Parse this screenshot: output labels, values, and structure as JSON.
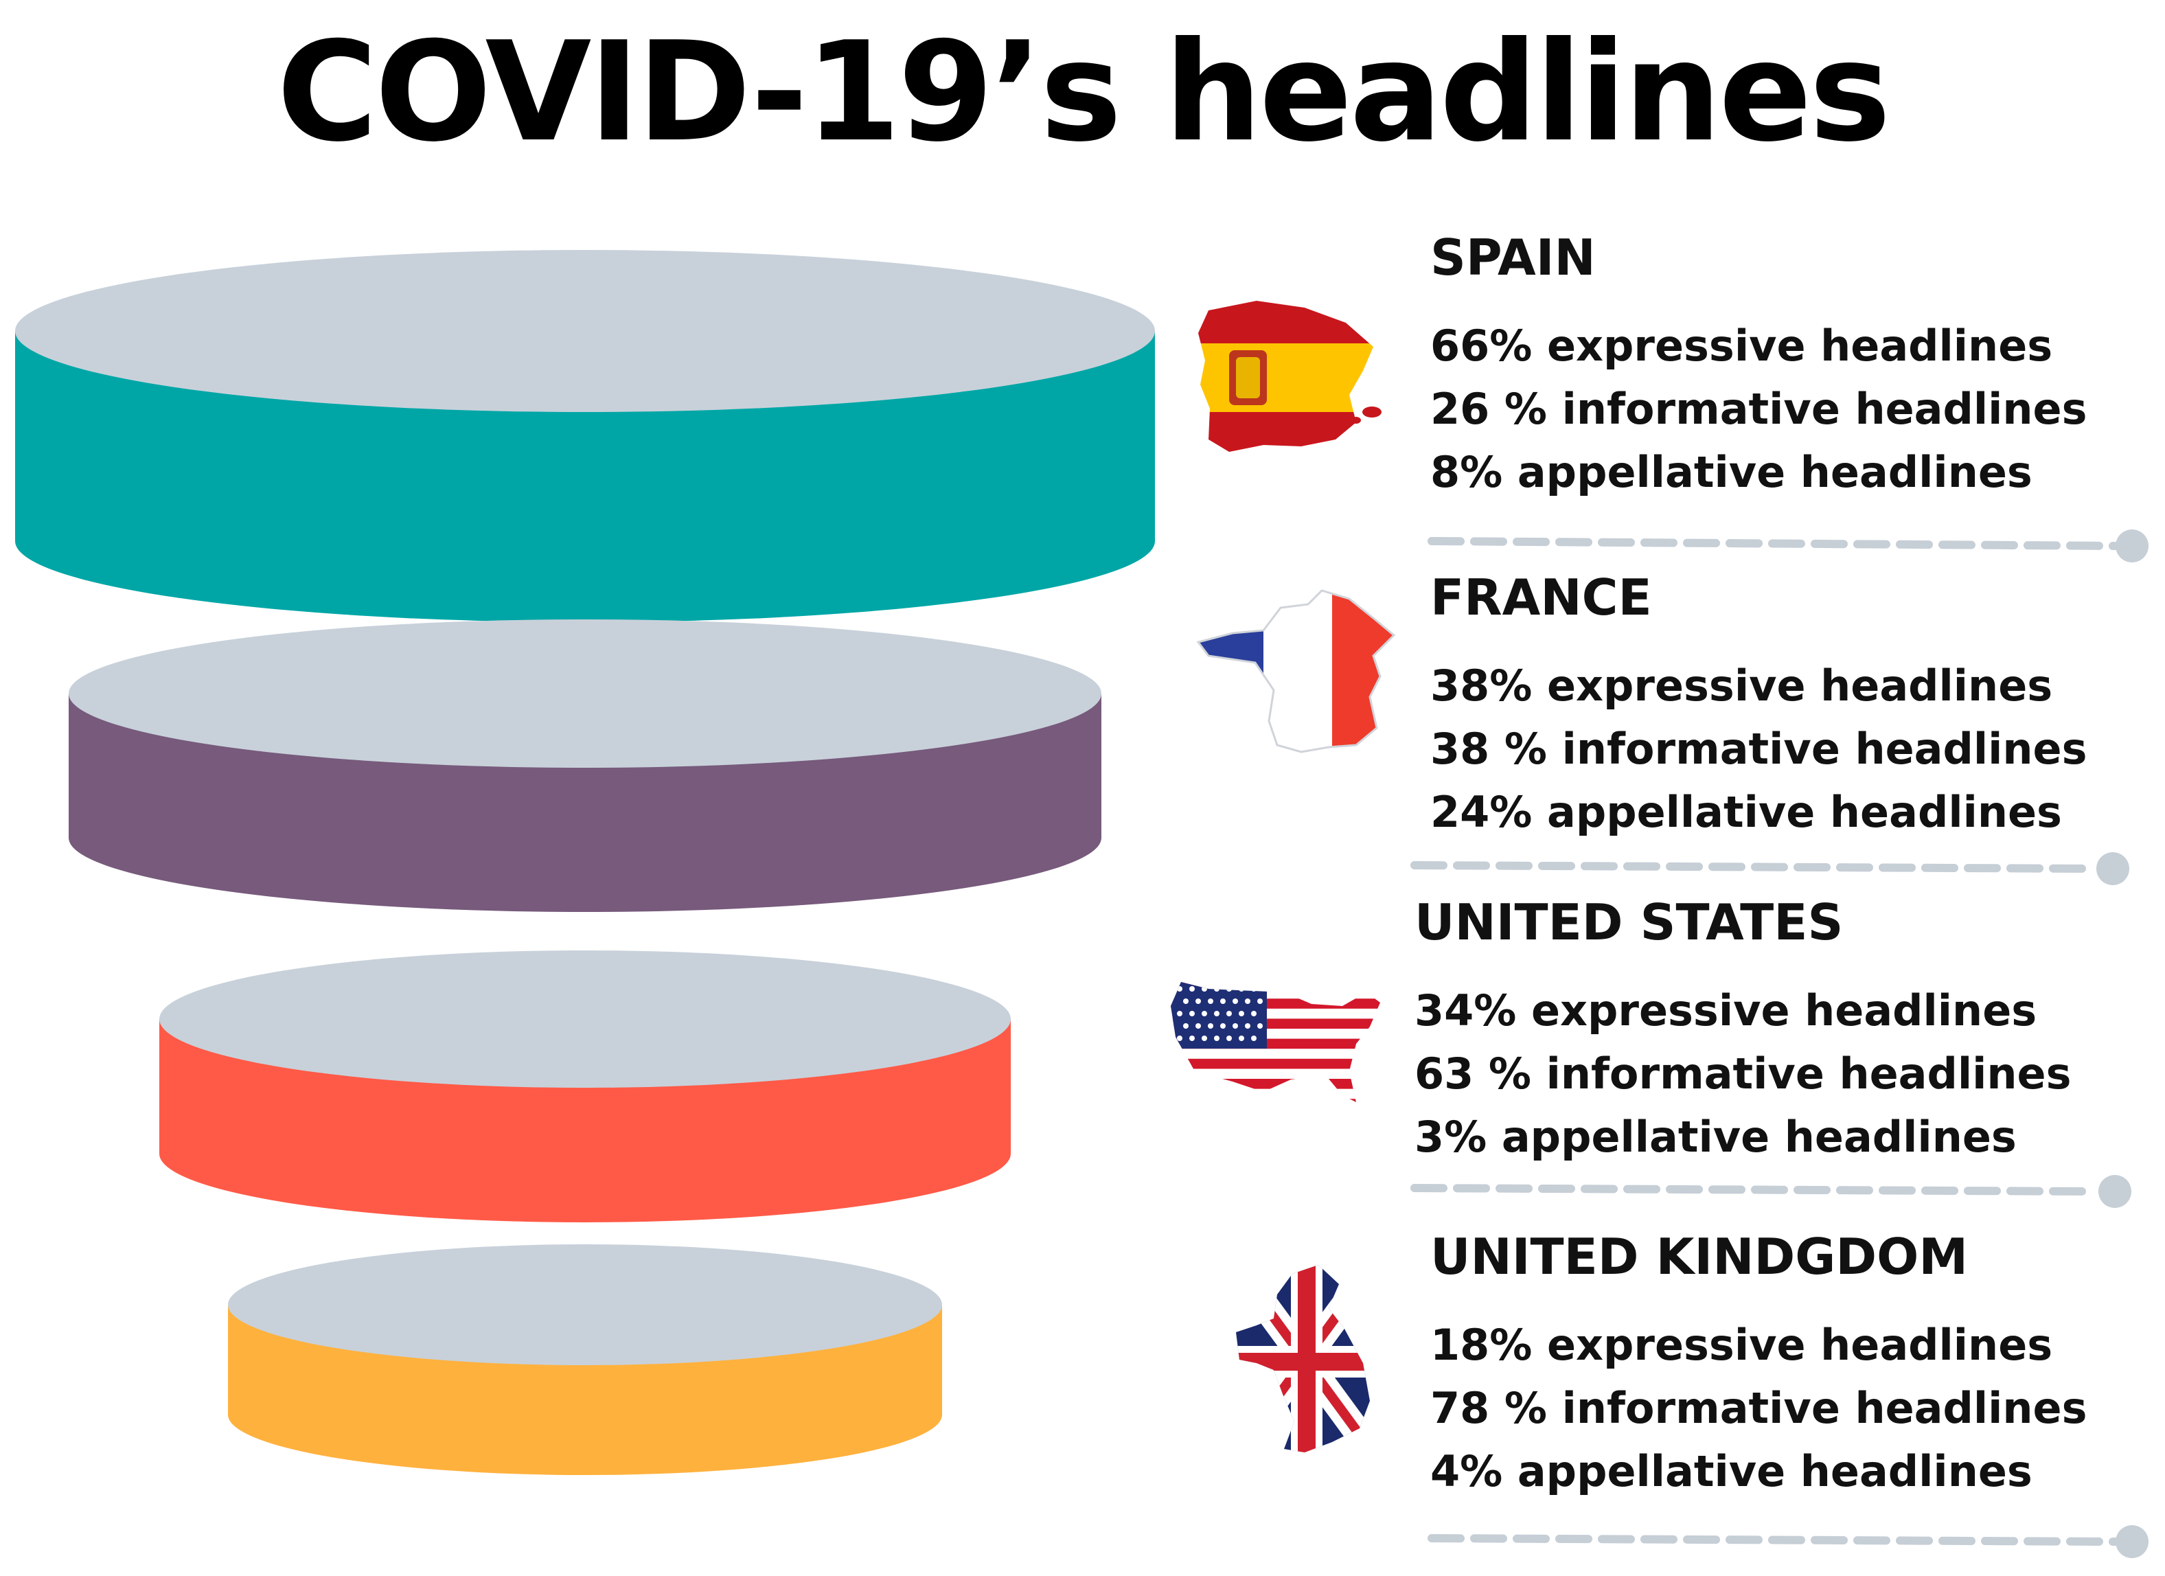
{
  "title": "COVID-19’s headlines",
  "colors": {
    "disc_top": "#c8d1da",
    "divider": "#c6ced6",
    "layers": [
      "#00a6a6",
      "#775a7c",
      "#ff5a47",
      "#ffb13d"
    ]
  },
  "countries": [
    {
      "name": "SPAIN",
      "flag_icon": "spain-map-flag-icon",
      "stats": [
        "66% expressive headlines",
        "26 % informative headlines",
        "8% appellative headlines"
      ]
    },
    {
      "name": "FRANCE",
      "flag_icon": "france-map-flag-icon",
      "stats": [
        "38% expressive headlines",
        "38 % informative headlines",
        "24% appellative headlines"
      ]
    },
    {
      "name": "UNITED STATES",
      "flag_icon": "usa-map-flag-icon",
      "stats": [
        "34% expressive headlines",
        "63 % informative headlines",
        "3% appellative headlines"
      ]
    },
    {
      "name": "UNITED KINDGDOM",
      "flag_icon": "uk-map-flag-icon",
      "stats": [
        "18% expressive headlines",
        "78 % informative headlines",
        "4% appellative headlines"
      ]
    }
  ]
}
